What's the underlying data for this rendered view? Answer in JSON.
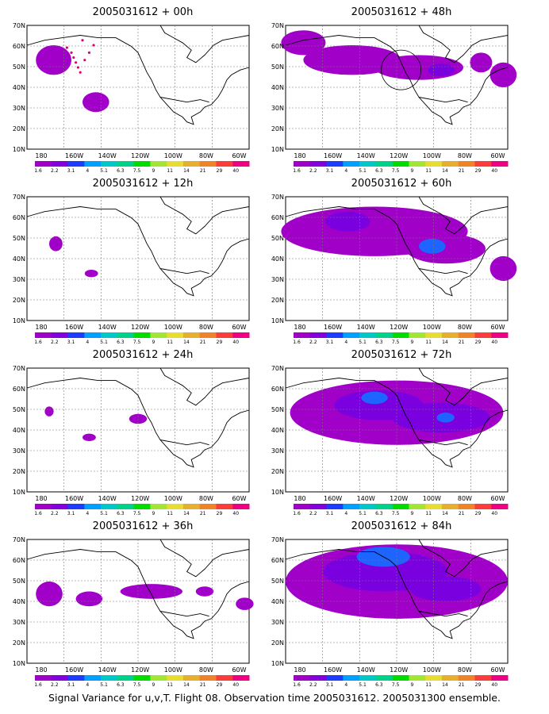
{
  "caption": "Signal Variance for u,v,T. Flight 08. Observation time 2005031612. 2005031300 ensemble.",
  "colorbar": {
    "labels": [
      "1.6",
      "2.2",
      "3.1",
      "4",
      "5.1",
      "6.3",
      "7.5",
      "9",
      "11",
      "14",
      "21",
      "29",
      "40"
    ],
    "colors": [
      "#a000c8",
      "#8200dc",
      "#1e3cff",
      "#00a0ff",
      "#00c8c8",
      "#00d28c",
      "#00dc00",
      "#a0e632",
      "#e6dc32",
      "#e6af2d",
      "#f08228",
      "#fa3c3c",
      "#f00082"
    ]
  },
  "x_tick_labels": [
    "180",
    "160W",
    "140W",
    "120W",
    "100W",
    "80W",
    "60W"
  ],
  "y_tick_labels": [
    "10N",
    "20N",
    "30N",
    "40N",
    "50N",
    "60N",
    "70N"
  ],
  "panels": [
    {
      "title": "2005031612 + 00h"
    },
    {
      "title": "2005031612 + 48h"
    },
    {
      "title": "2005031612 + 12h"
    },
    {
      "title": "2005031612 + 60h"
    },
    {
      "title": "2005031612 + 24h"
    },
    {
      "title": "2005031612 + 72h"
    },
    {
      "title": "2005031612 + 36h"
    },
    {
      "title": "2005031612 + 84h"
    }
  ]
}
